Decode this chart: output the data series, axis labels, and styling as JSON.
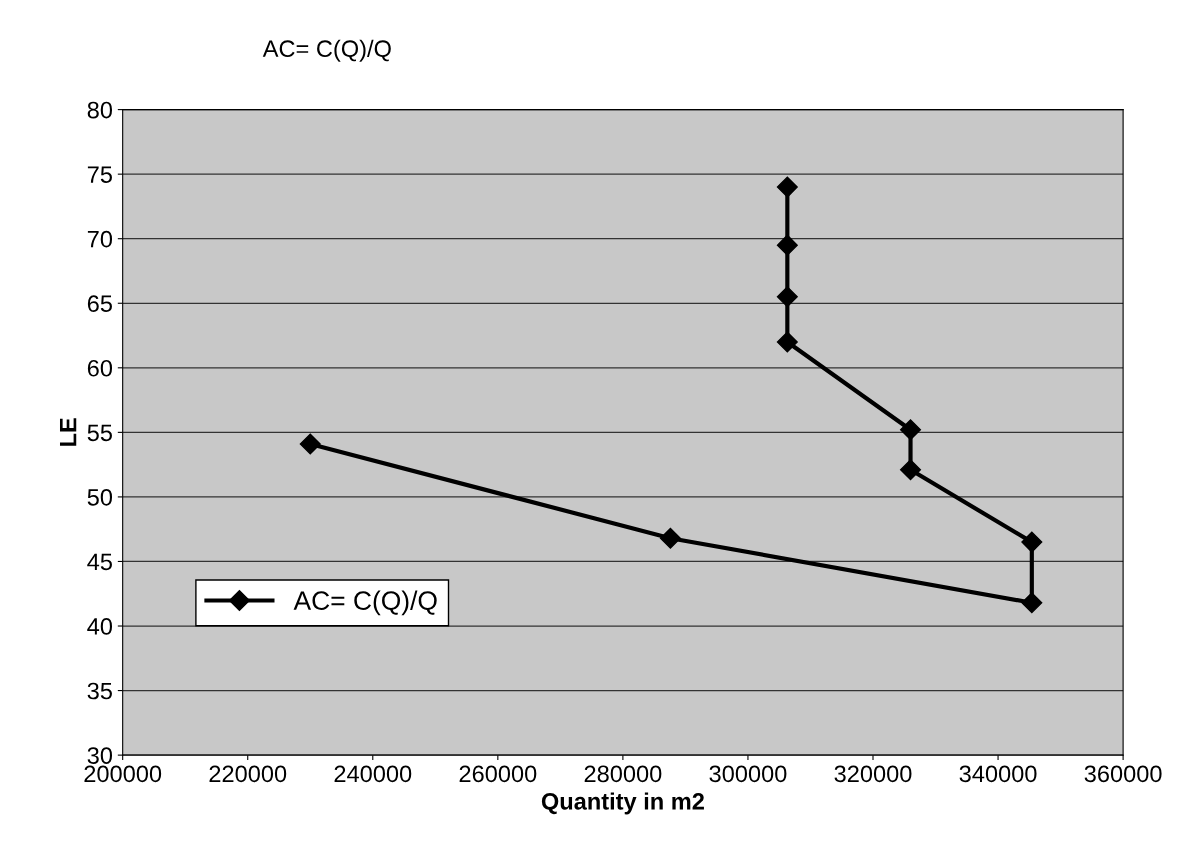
{
  "chart_data": {
    "type": "line",
    "title": "AC= C(Q)/Q",
    "xlabel": "Quantity in m2",
    "ylabel": "LE",
    "x": [
      230000,
      287600,
      345400,
      345400,
      326000,
      326000,
      306300,
      306300,
      306300,
      306300
    ],
    "series": [
      {
        "name": "AC= C(Q)/Q",
        "color": "#000000",
        "values": [
          54.1,
          46.8,
          41.8,
          46.5,
          52.1,
          55.2,
          62,
          65.5,
          69.5,
          74
        ]
      }
    ],
    "xlim": [
      200000,
      360000
    ],
    "xticks": [
      200000,
      220000,
      240000,
      260000,
      280000,
      300000,
      320000,
      340000,
      360000
    ],
    "ylim": [
      30,
      80
    ],
    "yticks": [
      30,
      35,
      40,
      45,
      50,
      55,
      60,
      65,
      70,
      75,
      80
    ],
    "grid": "y",
    "legend": "bottom left",
    "marker": "diamond",
    "line_style": "solid"
  }
}
